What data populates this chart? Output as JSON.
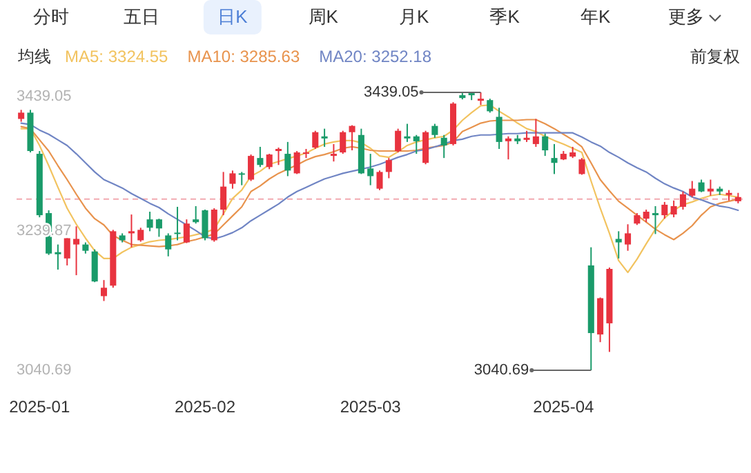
{
  "chart_data": {
    "type": "candlestick",
    "categories": [
      null,
      null,
      "2025-01",
      null,
      null,
      null,
      null,
      null,
      null,
      null,
      null,
      null,
      null,
      null,
      null,
      null,
      null,
      null,
      null,
      null,
      "2025-02",
      null,
      null,
      null,
      null,
      null,
      null,
      null,
      null,
      null,
      null,
      null,
      null,
      null,
      null,
      null,
      null,
      null,
      "2025-03",
      null,
      null,
      null,
      null,
      null,
      null,
      null,
      null,
      null,
      null,
      null,
      null,
      null,
      null,
      null,
      null,
      null,
      null,
      null,
      null,
      "2025-04",
      null,
      null,
      null,
      null,
      null,
      null,
      null,
      null,
      null,
      null,
      null,
      null,
      null,
      null,
      null,
      null,
      null,
      null,
      null
    ],
    "ohlc": [
      [
        3401,
        3414,
        3397,
        3410
      ],
      [
        3410,
        3414,
        3353,
        3355
      ],
      [
        3351,
        3355,
        3260,
        3263
      ],
      [
        3266,
        3270,
        3206,
        3208
      ],
      [
        3210,
        3221,
        3185,
        3207
      ],
      [
        3201,
        3230,
        3191,
        3230
      ],
      [
        3221,
        3247,
        3177,
        3229
      ],
      [
        3221,
        3224,
        3208,
        3212
      ],
      [
        3211,
        3214,
        3167,
        3168
      ],
      [
        3147,
        3170,
        3140,
        3159
      ],
      [
        3162,
        3242,
        3159,
        3240
      ],
      [
        3234,
        3237,
        3224,
        3227
      ],
      [
        3237,
        3264,
        3217,
        3240
      ],
      [
        3227,
        3245,
        3225,
        3242
      ],
      [
        3257,
        3268,
        3240,
        3245
      ],
      [
        3257,
        3258,
        3232,
        3244
      ],
      [
        3234,
        3237,
        3204,
        3214
      ],
      [
        3238,
        3275,
        3227,
        3236
      ],
      [
        3224,
        3257,
        3223,
        3251
      ],
      [
        3257,
        3276,
        3251,
        3253
      ],
      [
        3270,
        3271,
        3227,
        3230
      ],
      [
        3227,
        3273,
        3225,
        3271
      ],
      [
        3271,
        3325,
        3263,
        3304
      ],
      [
        3308,
        3327,
        3301,
        3323
      ],
      [
        3323,
        3325,
        3306,
        3321
      ],
      [
        3314,
        3350,
        3312,
        3348
      ],
      [
        3345,
        3361,
        3332,
        3335
      ],
      [
        3332,
        3351,
        3329,
        3350
      ],
      [
        3355,
        3360,
        3335,
        3358
      ],
      [
        3351,
        3368,
        3319,
        3327
      ],
      [
        3323,
        3355,
        3322,
        3353
      ],
      [
        3351,
        3358,
        3345,
        3353
      ],
      [
        3360,
        3384,
        3358,
        3382
      ],
      [
        3376,
        3387,
        3361,
        3373
      ],
      [
        3348,
        3365,
        3340,
        3351
      ],
      [
        3353,
        3384,
        3351,
        3382
      ],
      [
        3382,
        3392,
        3356,
        3391
      ],
      [
        3378,
        3387,
        3322,
        3323
      ],
      [
        3330,
        3351,
        3306,
        3319
      ],
      [
        3301,
        3327,
        3299,
        3325
      ],
      [
        3325,
        3345,
        3316,
        3342
      ],
      [
        3355,
        3387,
        3353,
        3384
      ],
      [
        3376,
        3394,
        3368,
        3373
      ],
      [
        3376,
        3378,
        3351,
        3369
      ],
      [
        3338,
        3384,
        3336,
        3382
      ],
      [
        3391,
        3394,
        3374,
        3378
      ],
      [
        3374,
        3378,
        3345,
        3363
      ],
      [
        3365,
        3425,
        3363,
        3423
      ],
      [
        3435,
        3438,
        3429,
        3431
      ],
      [
        3438,
        3439,
        3428,
        3435
      ],
      [
        3427,
        3439.05,
        3421,
        3430
      ],
      [
        3428,
        3430,
        3410,
        3412
      ],
      [
        3404,
        3417,
        3358,
        3368
      ],
      [
        3369,
        3376,
        3343,
        3373
      ],
      [
        3373,
        3378,
        3365,
        3369
      ],
      [
        3371,
        3384,
        3368,
        3374
      ],
      [
        3365,
        3401,
        3361,
        3376
      ],
      [
        3376,
        3380,
        3348,
        3356
      ],
      [
        3345,
        3365,
        3322,
        3338
      ],
      [
        3343,
        3355,
        3342,
        3351
      ],
      [
        3347,
        3361,
        3345,
        3353
      ],
      [
        3322,
        3345,
        3321,
        3343
      ],
      [
        3191,
        3217,
        3040.69,
        3094
      ],
      [
        3092,
        3145,
        3081,
        3144
      ],
      [
        3108,
        3188,
        3067,
        3186
      ],
      [
        3229,
        3240,
        3201,
        3224
      ],
      [
        3221,
        3250,
        3212,
        3237
      ],
      [
        3251,
        3266,
        3249,
        3263
      ],
      [
        3258,
        3271,
        3253,
        3268
      ],
      [
        3266,
        3276,
        3236,
        3263
      ],
      [
        3263,
        3282,
        3258,
        3278
      ],
      [
        3264,
        3284,
        3260,
        3276
      ],
      [
        3275,
        3297,
        3271,
        3293
      ],
      [
        3291,
        3312,
        3289,
        3301
      ],
      [
        3310,
        3314,
        3296,
        3297
      ],
      [
        3297,
        3314,
        3291,
        3301
      ],
      [
        3301,
        3304,
        3292,
        3297
      ],
      [
        3292,
        3299,
        3284,
        3295
      ],
      [
        3283,
        3295,
        3280,
        3289
      ]
    ],
    "series": [
      {
        "type": "line",
        "name": "MA5: 3324.55",
        "color": "#f2c35f",
        "values": [
          3387,
          3387,
          3363,
          3334,
          3303,
          3273,
          3250,
          3230,
          3212,
          3201,
          3201,
          3210,
          3217,
          3221,
          3225,
          3227,
          3228,
          3230,
          3232,
          3235,
          3238,
          3243,
          3265,
          3287,
          3299,
          3319,
          3326,
          3336,
          3340,
          3344,
          3348,
          3352,
          3359,
          3365,
          3368,
          3370,
          3370,
          3367,
          3359,
          3348,
          3346,
          3354,
          3363,
          3368,
          3371,
          3374,
          3376,
          3385,
          3399,
          3410,
          3420,
          3421,
          3412,
          3404,
          3395,
          3387,
          3383,
          3376,
          3370,
          3365,
          3359,
          3353,
          3312,
          3273,
          3237,
          3198,
          3181,
          3200,
          3222,
          3243,
          3259,
          3270,
          3278,
          3282,
          3287,
          3291,
          3293,
          3291,
          3289
        ]
      },
      {
        "type": "line",
        "name": "MA10: 3285.63",
        "color": "#e8934d",
        "values": [
          3390,
          3387,
          3371,
          3355,
          3334,
          3314,
          3293,
          3273,
          3258,
          3249,
          3234,
          3227,
          3221,
          3220,
          3219,
          3218,
          3219,
          3221,
          3225,
          3228,
          3232,
          3236,
          3249,
          3262,
          3275,
          3297,
          3305,
          3315,
          3323,
          3329,
          3335,
          3342,
          3347,
          3350,
          3354,
          3359,
          3361,
          3359,
          3356,
          3355,
          3355,
          3355,
          3355,
          3356,
          3359,
          3361,
          3363,
          3368,
          3383,
          3389,
          3395,
          3398,
          3399,
          3399,
          3399,
          3400,
          3400,
          3394,
          3387,
          3379,
          3371,
          3361,
          3338,
          3314,
          3298,
          3283,
          3273,
          3263,
          3253,
          3243,
          3235,
          3228,
          3237,
          3248,
          3263,
          3275,
          3280,
          3283,
          3286
        ]
      },
      {
        "type": "line",
        "name": "MA20: 3252.18",
        "color": "#7085c4",
        "values": [
          3395,
          3393,
          3385,
          3379,
          3371,
          3363,
          3351,
          3338,
          3325,
          3314,
          3308,
          3302,
          3294,
          3287,
          3280,
          3274,
          3265,
          3257,
          3249,
          3241,
          3232,
          3229,
          3233,
          3238,
          3245,
          3255,
          3263,
          3271,
          3279,
          3289,
          3297,
          3303,
          3309,
          3315,
          3319,
          3323,
          3326,
          3329,
          3332,
          3336,
          3341,
          3346,
          3350,
          3355,
          3357,
          3361,
          3365,
          3370,
          3372,
          3376,
          3378,
          3378,
          3379,
          3380,
          3380,
          3381,
          3381,
          3381,
          3381,
          3381,
          3381,
          3375,
          3368,
          3362,
          3353,
          3346,
          3338,
          3331,
          3325,
          3316,
          3308,
          3302,
          3297,
          3289,
          3285,
          3280,
          3276,
          3274,
          3270
        ]
      }
    ],
    "ylim": [
      3040.69,
      3439.05
    ],
    "yticks": [
      3439.05,
      3239.87,
      3040.69
    ],
    "ref_lines": [
      {
        "axis": "y",
        "value": 3286,
        "color": "#f2a9b0",
        "line_style": "dashed"
      }
    ],
    "legend": "top left",
    "legend_title": "均线",
    "annotations": [
      "分时",
      "五日",
      "日K",
      "周K",
      "月K",
      "季K",
      "年K",
      "更多",
      "前复权",
      "3439.05",
      "3040.69"
    ]
  }
}
